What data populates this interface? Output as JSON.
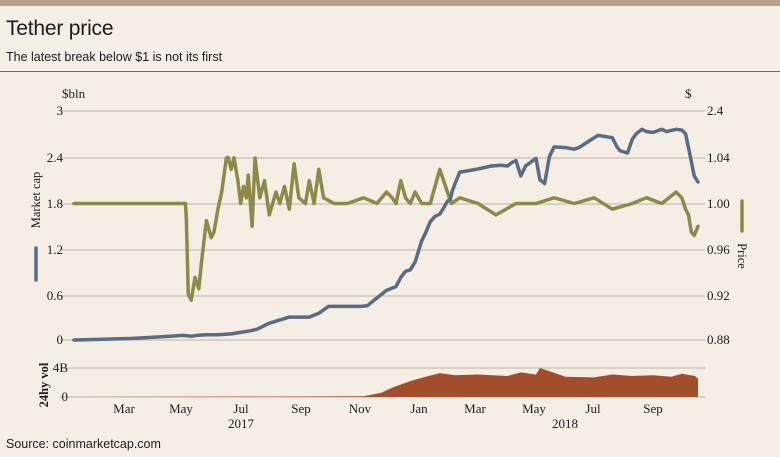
{
  "header": {
    "title": "Tether price",
    "subtitle": "The latest break below $1 is not its first"
  },
  "footer": {
    "source": "Source: coinmarketcap.com"
  },
  "colors": {
    "background": "#f4eee4",
    "market_cap": "#5a6b85",
    "price": "#8d8a48",
    "volume": "#a24d2c",
    "grid": "#a69d92"
  },
  "chart_data": {
    "type": "line",
    "left_axis": {
      "unit": "$bln",
      "label": "Market cap",
      "ticks": [
        "3",
        "2.4",
        "1.8",
        "1.2",
        "0.6",
        "0"
      ],
      "range": [
        0,
        3
      ]
    },
    "right_axis": {
      "unit": "$",
      "label": "Price",
      "ticks": [
        "2.4",
        "1.04",
        "1.00",
        "0.96",
        "0.92",
        "0.88"
      ]
    },
    "volume_axis": {
      "label": "24hy vol",
      "ticks": [
        "4B",
        "0"
      ]
    },
    "x_months": [
      "Mar",
      "May",
      "Jul",
      "Sep",
      "Nov",
      "Jan",
      "Mar",
      "May",
      "Jul",
      "Sep"
    ],
    "x_years": [
      "2017",
      "2018"
    ],
    "grid": true,
    "series": [
      {
        "name": "Market cap",
        "axis": "left",
        "x": [
          "2017-01-01",
          "2017-02-01",
          "2017-03-01",
          "2017-04-01",
          "2017-04-25",
          "2017-05-05",
          "2017-05-10",
          "2017-05-20",
          "2017-06-01",
          "2017-06-15",
          "2017-06-20",
          "2017-07-05",
          "2017-07-12",
          "2017-07-25",
          "2017-08-15",
          "2017-09-01",
          "2017-09-05",
          "2017-09-15",
          "2017-09-25",
          "2017-10-15",
          "2017-10-30",
          "2017-11-05",
          "2017-11-15",
          "2017-11-25",
          "2017-12-01",
          "2017-12-05",
          "2017-12-10",
          "2017-12-15",
          "2017-12-20",
          "2017-12-25",
          "2018-01-01",
          "2018-01-05",
          "2018-01-10",
          "2018-01-15",
          "2018-01-20",
          "2018-01-25",
          "2018-01-28",
          "2018-01-31",
          "2018-02-02",
          "2018-02-05",
          "2018-02-10",
          "2018-02-20",
          "2018-03-01",
          "2018-03-15",
          "2018-03-25",
          "2018-04-01",
          "2018-04-05",
          "2018-04-10",
          "2018-04-15",
          "2018-04-20",
          "2018-05-01",
          "2018-05-05",
          "2018-05-10",
          "2018-05-15",
          "2018-05-20",
          "2018-06-01",
          "2018-06-10",
          "2018-06-15",
          "2018-06-25",
          "2018-07-01",
          "2018-07-05",
          "2018-07-20",
          "2018-07-25",
          "2018-07-28",
          "2018-08-05",
          "2018-08-10",
          "2018-08-14",
          "2018-08-20",
          "2018-08-25",
          "2018-09-01",
          "2018-09-10",
          "2018-09-15",
          "2018-09-25",
          "2018-10-01",
          "2018-10-05",
          "2018-10-10",
          "2018-10-14",
          "2018-10-18"
        ],
        "values": [
          0.0,
          0.01,
          0.02,
          0.04,
          0.06,
          0.05,
          0.06,
          0.07,
          0.07,
          0.08,
          0.09,
          0.12,
          0.14,
          0.22,
          0.3,
          0.3,
          0.3,
          0.35,
          0.44,
          0.44,
          0.44,
          0.45,
          0.55,
          0.65,
          0.68,
          0.7,
          0.82,
          0.9,
          0.92,
          1.02,
          1.3,
          1.4,
          1.55,
          1.62,
          1.65,
          1.75,
          1.82,
          1.84,
          1.95,
          2.05,
          2.2,
          2.22,
          2.24,
          2.28,
          2.29,
          2.28,
          2.32,
          2.35,
          2.15,
          2.28,
          2.38,
          2.1,
          2.05,
          2.4,
          2.53,
          2.52,
          2.5,
          2.52,
          2.6,
          2.65,
          2.68,
          2.65,
          2.53,
          2.48,
          2.45,
          2.63,
          2.7,
          2.76,
          2.73,
          2.72,
          2.76,
          2.73,
          2.76,
          2.75,
          2.7,
          2.4,
          2.15,
          2.07
        ]
      },
      {
        "name": "Price",
        "axis": "right",
        "x": [
          "2017-01-01",
          "2017-04-28",
          "2017-04-29",
          "2017-05-01",
          "2017-05-04",
          "2017-05-08",
          "2017-05-12",
          "2017-05-15",
          "2017-05-20",
          "2017-05-25",
          "2017-05-28",
          "2017-06-01",
          "2017-06-05",
          "2017-06-10",
          "2017-06-12",
          "2017-06-15",
          "2017-06-18",
          "2017-06-22",
          "2017-06-25",
          "2017-06-28",
          "2017-07-01",
          "2017-07-03",
          "2017-07-07",
          "2017-07-10",
          "2017-07-15",
          "2017-07-20",
          "2017-07-25",
          "2017-08-01",
          "2017-08-05",
          "2017-08-10",
          "2017-08-15",
          "2017-08-20",
          "2017-08-25",
          "2017-09-01",
          "2017-09-05",
          "2017-09-10",
          "2017-09-15",
          "2017-09-20",
          "2017-10-01",
          "2017-10-15",
          "2017-11-01",
          "2017-11-15",
          "2017-11-25",
          "2017-12-01",
          "2017-12-05",
          "2017-12-10",
          "2017-12-15",
          "2017-12-20",
          "2017-12-25",
          "2018-01-01",
          "2018-01-10",
          "2018-01-20",
          "2018-02-01",
          "2018-02-10",
          "2018-03-01",
          "2018-03-20",
          "2018-04-10",
          "2018-05-01",
          "2018-05-20",
          "2018-06-10",
          "2018-07-01",
          "2018-07-20",
          "2018-08-10",
          "2018-08-25",
          "2018-09-10",
          "2018-09-25",
          "2018-10-01",
          "2018-10-05",
          "2018-10-08",
          "2018-10-11",
          "2018-10-14",
          "2018-10-18"
        ],
        "values": [
          1.0,
          1.0,
          0.985,
          0.92,
          0.915,
          0.935,
          0.925,
          0.95,
          0.985,
          0.97,
          0.975,
          0.995,
          1.01,
          1.04,
          1.055,
          1.03,
          1.05,
          1.02,
          1.0,
          1.015,
          1.005,
          1.025,
          0.98,
          1.04,
          1.005,
          1.02,
          0.99,
          1.01,
          1.0,
          1.015,
          0.995,
          1.035,
          1.005,
          1.0,
          1.02,
          1.0,
          1.03,
          1.005,
          1.0,
          1.0,
          1.005,
          1.0,
          1.01,
          1.005,
          1.0,
          1.02,
          1.005,
          1.0,
          1.01,
          1.0,
          1.0,
          1.03,
          1.0,
          1.005,
          1.0,
          0.99,
          1.0,
          1.0,
          1.005,
          1.0,
          1.005,
          0.995,
          1.0,
          1.005,
          1.0,
          1.01,
          1.005,
          0.995,
          0.99,
          0.975,
          0.972,
          0.98
        ]
      },
      {
        "name": "24hy vol",
        "axis": "volume",
        "type": "area",
        "x": [
          "2017-01-01",
          "2017-11-01",
          "2017-11-20",
          "2017-12-01",
          "2017-12-20",
          "2018-01-05",
          "2018-01-20",
          "2018-02-05",
          "2018-03-01",
          "2018-04-01",
          "2018-04-15",
          "2018-05-01",
          "2018-05-05",
          "2018-06-01",
          "2018-07-01",
          "2018-07-20",
          "2018-08-10",
          "2018-09-01",
          "2018-09-20",
          "2018-10-01",
          "2018-10-15",
          "2018-10-18"
        ],
        "values": [
          0.0,
          0.1,
          0.6,
          1.3,
          2.2,
          2.8,
          3.3,
          3.0,
          3.1,
          2.9,
          3.4,
          3.1,
          4.0,
          2.8,
          2.7,
          3.1,
          2.9,
          3.0,
          2.8,
          3.2,
          2.9,
          2.5
        ]
      }
    ]
  }
}
